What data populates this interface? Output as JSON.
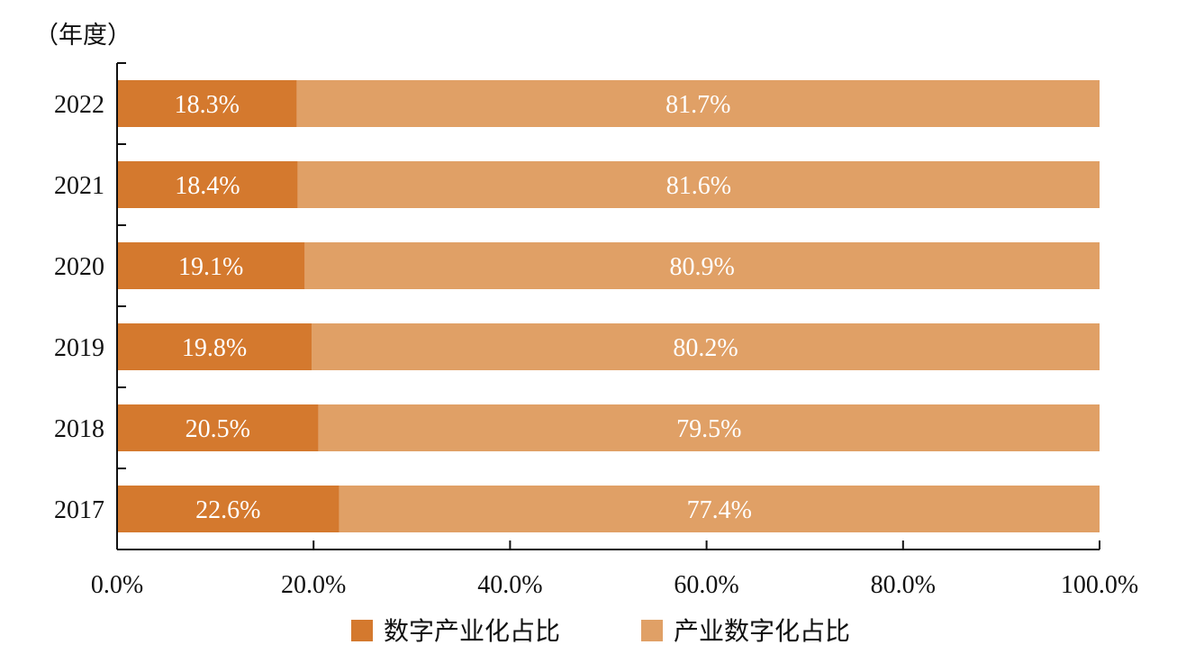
{
  "chart_data": {
    "type": "bar",
    "orientation": "horizontal",
    "stacked": true,
    "y_axis_title": "（年度）",
    "categories": [
      "2022",
      "2021",
      "2020",
      "2019",
      "2018",
      "2017"
    ],
    "series": [
      {
        "name": "数字产业化占比",
        "color": "#D4792E",
        "values": [
          18.3,
          18.4,
          19.1,
          19.8,
          20.5,
          22.6
        ],
        "labels": [
          "18.3%",
          "18.4%",
          "19.1%",
          "19.8%",
          "20.5%",
          "22.6%"
        ]
      },
      {
        "name": "产业数字化占比",
        "color": "#E0A066",
        "values": [
          81.7,
          81.6,
          80.9,
          80.2,
          79.5,
          77.4
        ],
        "labels": [
          "81.7%",
          "81.6%",
          "80.9%",
          "80.2%",
          "79.5%",
          "77.4%"
        ]
      }
    ],
    "xlim": [
      0,
      100
    ],
    "x_ticks": [
      0,
      20,
      40,
      60,
      80,
      100
    ],
    "x_tick_labels": [
      "0.0%",
      "20.0%",
      "40.0%",
      "60.0%",
      "80.0%",
      "100.0%"
    ],
    "grid": false,
    "legend_position": "bottom-center"
  }
}
